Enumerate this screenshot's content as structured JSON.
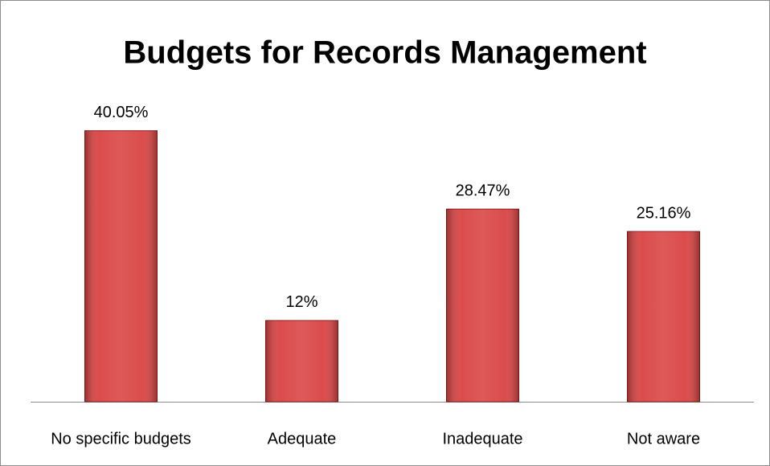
{
  "chart_data": {
    "type": "bar",
    "title": "Budgets for Records Management",
    "categories": [
      "No specific budgets",
      "Adequate",
      "Inadequate",
      "Not aware"
    ],
    "values": [
      40.05,
      12,
      28.47,
      25.16
    ],
    "value_labels": [
      "40.05%",
      "12%",
      "28.47%",
      "25.16%"
    ],
    "color": "#d94343",
    "ylim": [
      0,
      45
    ]
  }
}
